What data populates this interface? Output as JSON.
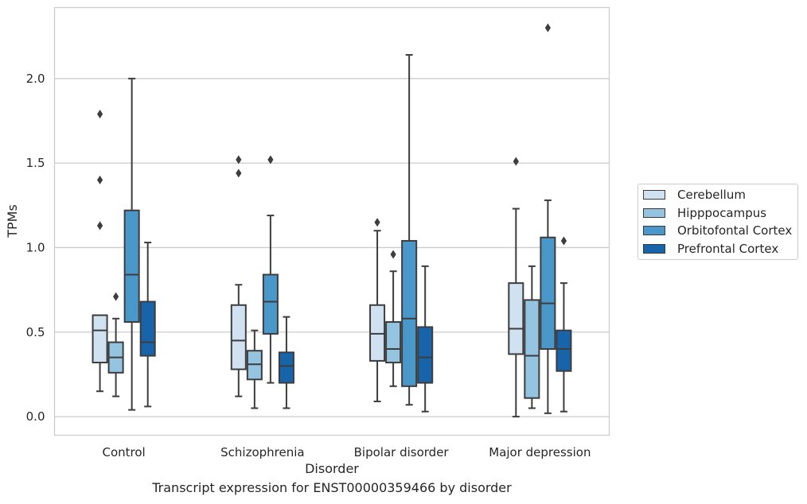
{
  "chart_data": {
    "type": "box",
    "title": "",
    "xlabel": "Disorder",
    "ylabel": "TPMs",
    "caption": "Transcript expression for ENST00000359466 by disorder",
    "categories": [
      "Control",
      "Schizophrenia",
      "Bipolar disorder",
      "Major depression"
    ],
    "ylim": [
      -0.11,
      2.42
    ],
    "yticks": [
      "0.0",
      "0.5",
      "1.0",
      "1.5",
      "2.0"
    ],
    "ytick_values": [
      0.0,
      0.5,
      1.0,
      1.5,
      2.0
    ],
    "grid": "horizontal",
    "legend_position": "right",
    "series": [
      {
        "name": "Cerebellum",
        "color": "#d0e1f2",
        "boxes": [
          {
            "whislo": 0.15,
            "q1": 0.32,
            "med": 0.51,
            "q3": 0.6,
            "whishi": 0.6,
            "fliers": [
              1.13,
              1.4,
              1.79
            ]
          },
          {
            "whislo": 0.12,
            "q1": 0.28,
            "med": 0.45,
            "q3": 0.66,
            "whishi": 0.78,
            "fliers": [
              1.44,
              1.52
            ]
          },
          {
            "whislo": 0.09,
            "q1": 0.33,
            "med": 0.49,
            "q3": 0.66,
            "whishi": 1.1,
            "fliers": [
              1.15
            ]
          },
          {
            "whislo": 0.0,
            "q1": 0.37,
            "med": 0.52,
            "q3": 0.79,
            "whishi": 1.23,
            "fliers": [
              1.51
            ]
          }
        ]
      },
      {
        "name": "Hipppocampus",
        "color": "#94c4df",
        "boxes": [
          {
            "whislo": 0.12,
            "q1": 0.26,
            "med": 0.35,
            "q3": 0.44,
            "whishi": 0.58,
            "fliers": [
              0.71
            ]
          },
          {
            "whislo": 0.05,
            "q1": 0.22,
            "med": 0.31,
            "q3": 0.39,
            "whishi": 0.51,
            "fliers": []
          },
          {
            "whislo": 0.18,
            "q1": 0.32,
            "med": 0.4,
            "q3": 0.56,
            "whishi": 0.86,
            "fliers": [
              0.96
            ]
          },
          {
            "whislo": 0.05,
            "q1": 0.11,
            "med": 0.36,
            "q3": 0.69,
            "whishi": 0.89,
            "fliers": []
          }
        ]
      },
      {
        "name": "Orbitofontal Cortex",
        "color": "#4a98c9",
        "boxes": [
          {
            "whislo": 0.04,
            "q1": 0.56,
            "med": 0.84,
            "q3": 1.22,
            "whishi": 2.0,
            "fliers": []
          },
          {
            "whislo": 0.2,
            "q1": 0.49,
            "med": 0.68,
            "q3": 0.84,
            "whishi": 1.19,
            "fliers": [
              1.52
            ]
          },
          {
            "whislo": 0.07,
            "q1": 0.18,
            "med": 0.58,
            "q3": 1.04,
            "whishi": 2.14,
            "fliers": []
          },
          {
            "whislo": 0.02,
            "q1": 0.4,
            "med": 0.67,
            "q3": 1.06,
            "whishi": 1.28,
            "fliers": [
              2.3
            ]
          }
        ]
      },
      {
        "name": "Prefrontal Cortex",
        "color": "#1764ab",
        "boxes": [
          {
            "whislo": 0.06,
            "q1": 0.36,
            "med": 0.44,
            "q3": 0.68,
            "whishi": 1.03,
            "fliers": []
          },
          {
            "whislo": 0.05,
            "q1": 0.2,
            "med": 0.3,
            "q3": 0.38,
            "whishi": 0.59,
            "fliers": []
          },
          {
            "whislo": 0.03,
            "q1": 0.2,
            "med": 0.35,
            "q3": 0.53,
            "whishi": 0.89,
            "fliers": []
          },
          {
            "whislo": 0.03,
            "q1": 0.27,
            "med": 0.4,
            "q3": 0.51,
            "whishi": 0.79,
            "fliers": [
              1.04
            ]
          }
        ]
      }
    ]
  }
}
